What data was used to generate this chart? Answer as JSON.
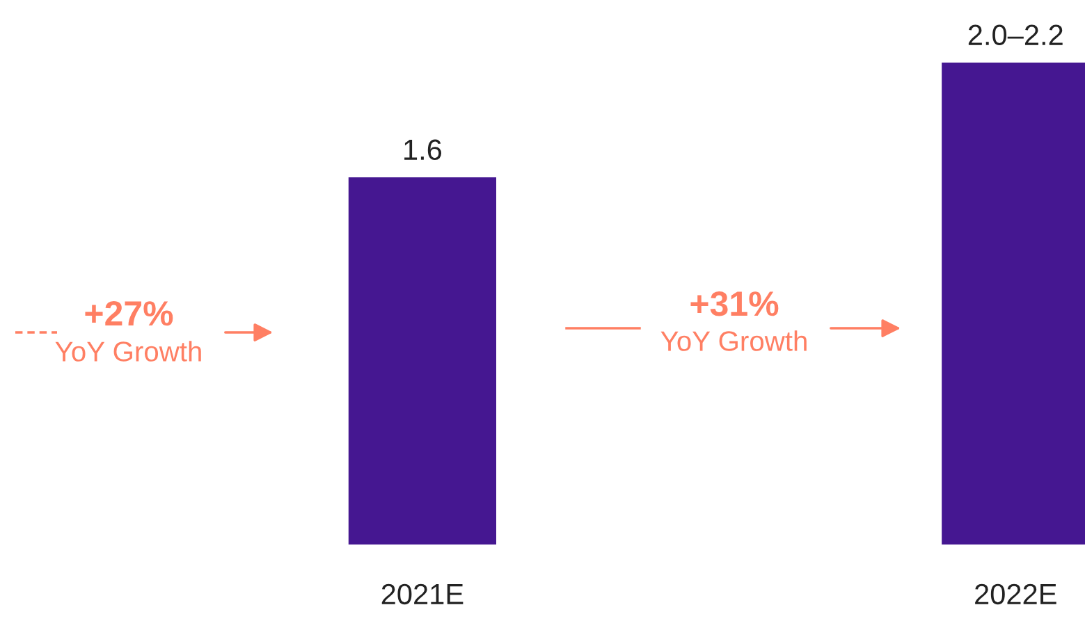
{
  "chart_data": {
    "type": "bar",
    "categories": [
      "2021E",
      "2022E"
    ],
    "values": [
      1.6,
      2.1
    ],
    "value_labels": [
      "1.6",
      "2.0–2.2"
    ],
    "color": "#451791",
    "annotations": [
      "+27%",
      "YoY Growth",
      "+31%",
      "YoY Growth"
    ],
    "grid": false,
    "legend": false
  }
}
